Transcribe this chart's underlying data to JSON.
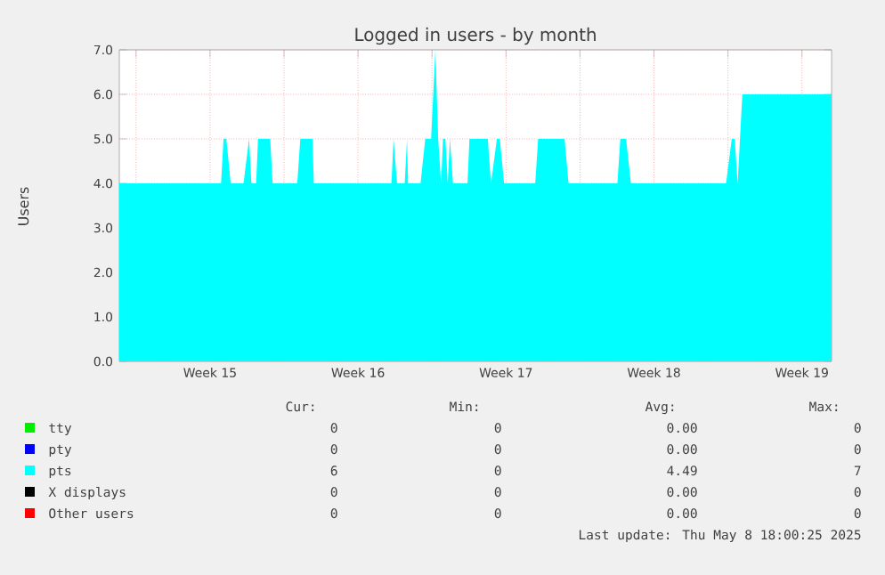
{
  "chart_data": {
    "type": "area",
    "title": "Logged in users - by month",
    "ylabel": "Users",
    "xlim": [
      "2025-04-06T05:00",
      "2025-05-09T21:40"
    ],
    "ylim": [
      0,
      7
    ],
    "xticks": [
      {
        "value": "2025-04-07",
        "label": null
      },
      {
        "value": "2025-04-10T12:00",
        "label": "Week 15"
      },
      {
        "value": "2025-04-14",
        "label": null
      },
      {
        "value": "2025-04-17T12:00",
        "label": "Week 16"
      },
      {
        "value": "2025-04-21",
        "label": null
      },
      {
        "value": "2025-04-24T12:00",
        "label": "Week 17"
      },
      {
        "value": "2025-04-28",
        "label": null
      },
      {
        "value": "2025-05-01T12:00",
        "label": "Week 18"
      },
      {
        "value": "2025-05-05",
        "label": null
      },
      {
        "value": "2025-05-08T12:00",
        "label": "Week 19"
      }
    ],
    "yticks": [
      {
        "value": 0,
        "label": "0.0"
      },
      {
        "value": 1,
        "label": "1.0"
      },
      {
        "value": 2,
        "label": "2.0"
      },
      {
        "value": 3,
        "label": "3.0"
      },
      {
        "value": 4,
        "label": "4.0"
      },
      {
        "value": 5,
        "label": "5.0"
      },
      {
        "value": 6,
        "label": "6.0"
      },
      {
        "value": 7,
        "label": "7.0"
      }
    ],
    "grid": true,
    "legend": "bottom",
    "series": [
      {
        "name": "tty",
        "color": "#00ee00"
      },
      {
        "name": "pty",
        "color": "#0000ff"
      },
      {
        "name": "pts",
        "color": "#00ffff",
        "x": [
          "2025-04-06T05:00",
          "2025-04-11T00:30",
          "2025-04-11T03:20",
          "2025-04-11T06:30",
          "2025-04-11T11:30",
          "2025-04-12T02:00",
          "2025-04-12T08:20",
          "2025-04-12T11:00",
          "2025-04-12T16:20",
          "2025-04-12T18:30",
          "2025-04-13T08:20",
          "2025-04-13T11:00",
          "2025-04-14T15:00",
          "2025-04-14T18:30",
          "2025-04-15T08:20",
          "2025-04-15T09:50",
          "2025-04-19T02:00",
          "2025-04-19T04:20",
          "2025-04-19T08:20",
          "2025-04-19T17:00",
          "2025-04-19T19:40",
          "2025-04-19T20:50",
          "2025-04-20T11:00",
          "2025-04-20T16:20",
          "2025-04-20T23:00",
          "2025-04-21T03:50",
          "2025-04-21T07:00",
          "2025-04-21T10:20",
          "2025-04-21T12:30",
          "2025-04-21T15:10",
          "2025-04-21T17:50",
          "2025-04-21T20:20",
          "2025-04-21T23:50",
          "2025-04-22T16:20",
          "2025-04-22T18:30",
          "2025-04-23T15:20",
          "2025-04-23T19:00",
          "2025-04-24T01:40",
          "2025-04-24T05:00",
          "2025-04-24T09:50",
          "2025-04-25T21:10",
          "2025-04-26T00:30",
          "2025-04-27T06:30",
          "2025-04-27T11:00",
          "2025-04-29T18:30",
          "2025-04-29T21:50",
          "2025-04-30T04:20",
          "2025-04-30T09:50",
          "2025-05-04T21:50",
          "2025-05-05T04:20",
          "2025-05-05T07:40",
          "2025-05-05T11:00",
          "2025-05-05T16:20",
          "2025-05-09T21:40"
        ],
        "values": [
          4,
          4,
          5,
          5,
          4,
          4,
          5,
          4,
          4,
          5,
          5,
          4,
          4,
          5,
          5,
          4,
          4,
          5,
          4,
          4,
          5,
          4,
          4,
          5,
          5,
          7,
          5,
          4,
          5,
          5,
          4,
          5,
          4,
          4,
          5,
          5,
          4,
          5,
          5,
          4,
          4,
          5,
          5,
          4,
          4,
          5,
          5,
          4,
          4,
          5,
          5,
          4,
          6,
          6
        ]
      },
      {
        "name": "X displays",
        "color": "#000000"
      },
      {
        "name": "Other users",
        "color": "#ff0000"
      }
    ],
    "annotations": [
      "Cur:",
      "Min:",
      "Avg:",
      "Max:",
      "0",
      "0",
      "0.00",
      "0",
      "0",
      "0",
      "0.00",
      "0",
      "6",
      "0",
      "4.49",
      "7",
      "0",
      "0",
      "0.00",
      "0",
      "0",
      "0",
      "0.00",
      "0",
      "Last update: Thu May 8 18:00:25 2025"
    ]
  }
}
